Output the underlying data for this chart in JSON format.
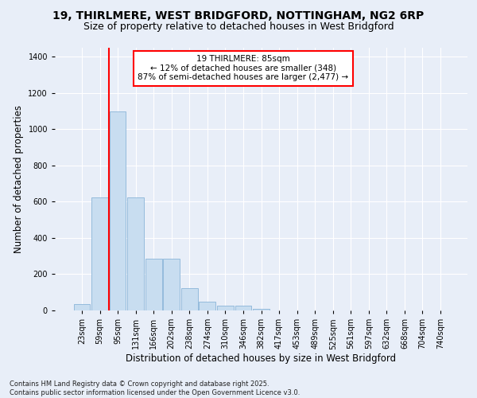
{
  "title_line1": "19, THIRLMERE, WEST BRIDGFORD, NOTTINGHAM, NG2 6RP",
  "title_line2": "Size of property relative to detached houses in West Bridgford",
  "xlabel": "Distribution of detached houses by size in West Bridgford",
  "ylabel": "Number of detached properties",
  "categories": [
    "23sqm",
    "59sqm",
    "95sqm",
    "131sqm",
    "166sqm",
    "202sqm",
    "238sqm",
    "274sqm",
    "310sqm",
    "346sqm",
    "382sqm",
    "417sqm",
    "453sqm",
    "489sqm",
    "525sqm",
    "561sqm",
    "597sqm",
    "632sqm",
    "668sqm",
    "704sqm",
    "740sqm"
  ],
  "values": [
    35,
    625,
    1100,
    625,
    285,
    285,
    125,
    50,
    25,
    25,
    10,
    0,
    0,
    0,
    0,
    0,
    0,
    0,
    0,
    0,
    0
  ],
  "bar_color": "#c8ddf0",
  "bar_edge_color": "#8ab4d8",
  "annotation_text": "19 THIRLMERE: 85sqm\n← 12% of detached houses are smaller (348)\n87% of semi-detached houses are larger (2,477) →",
  "annotation_box_facecolor": "white",
  "annotation_box_edgecolor": "red",
  "vline_color": "red",
  "vline_x": 1.5,
  "ylim": [
    0,
    1450
  ],
  "yticks": [
    0,
    200,
    400,
    600,
    800,
    1000,
    1200,
    1400
  ],
  "background_color": "#e8eef8",
  "grid_color": "white",
  "footer_line1": "Contains HM Land Registry data © Crown copyright and database right 2025.",
  "footer_line2": "Contains public sector information licensed under the Open Government Licence v3.0.",
  "title_fontsize": 10,
  "subtitle_fontsize": 9,
  "axis_label_fontsize": 8.5,
  "tick_fontsize": 7,
  "annotation_fontsize": 7.5,
  "footer_fontsize": 6
}
